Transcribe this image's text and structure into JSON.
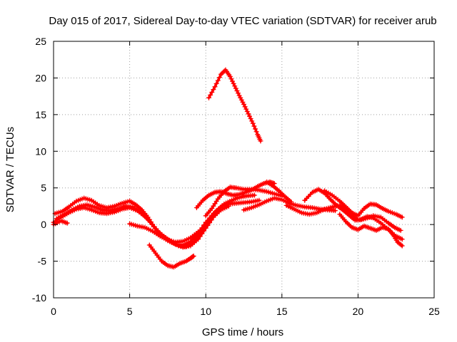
{
  "chart_data": {
    "type": "scatter",
    "title": "Day 015 of 2017, Sidereal Day-to-day VTEC variation (SDTVAR) for receiver arub",
    "xlabel": "GPS time / hours",
    "ylabel": "SDTVAR / TECUs",
    "xlim": [
      0,
      25
    ],
    "ylim": [
      -10,
      25
    ],
    "xticks": [
      "0",
      "5",
      "10",
      "15",
      "20",
      "25"
    ],
    "yticks": [
      "-10",
      "-5",
      "0",
      "5",
      "10",
      "15",
      "20",
      "25"
    ],
    "grid": true,
    "marker": "+",
    "color": "#ff0000",
    "series": [
      {
        "name": "track-1",
        "points": [
          [
            0.1,
            1.5
          ],
          [
            0.6,
            1.8
          ],
          [
            1.0,
            2.4
          ],
          [
            1.5,
            3.2
          ],
          [
            2.0,
            3.6
          ],
          [
            2.5,
            3.3
          ],
          [
            3.0,
            2.6
          ],
          [
            3.5,
            2.3
          ],
          [
            4.0,
            2.5
          ],
          [
            4.5,
            2.9
          ],
          [
            5.0,
            3.2
          ],
          [
            5.4,
            2.7
          ],
          [
            5.8,
            2.0
          ],
          [
            6.2,
            1.0
          ],
          [
            6.6,
            -0.3
          ],
          [
            7.0,
            -1.5
          ],
          [
            7.5,
            -2.2
          ],
          [
            8.0,
            -2.7
          ],
          [
            8.5,
            -2.8
          ],
          [
            9.0,
            -2.3
          ],
          [
            9.5,
            -1.2
          ],
          [
            10.0,
            0.3
          ],
          [
            10.5,
            1.5
          ],
          [
            11.0,
            2.4
          ],
          [
            11.5,
            2.8
          ],
          [
            12.0,
            2.9
          ],
          [
            12.5,
            3.0
          ],
          [
            13.0,
            3.1
          ],
          [
            13.5,
            3.3
          ]
        ]
      },
      {
        "name": "track-2",
        "points": [
          [
            0.2,
            0.8
          ],
          [
            0.7,
            1.4
          ],
          [
            1.2,
            2.0
          ],
          [
            1.7,
            2.5
          ],
          [
            2.2,
            2.7
          ],
          [
            2.7,
            2.4
          ],
          [
            3.2,
            2.0
          ],
          [
            3.7,
            1.9
          ],
          [
            4.2,
            2.1
          ],
          [
            4.7,
            2.5
          ],
          [
            5.2,
            2.4
          ],
          [
            5.7,
            1.7
          ],
          [
            6.2,
            0.7
          ],
          [
            6.7,
            -0.6
          ],
          [
            7.2,
            -1.6
          ],
          [
            7.7,
            -2.3
          ],
          [
            8.2,
            -2.9
          ],
          [
            8.7,
            -3.0
          ],
          [
            9.2,
            -2.4
          ],
          [
            9.7,
            -1.0
          ],
          [
            10.2,
            0.6
          ],
          [
            10.7,
            1.9
          ],
          [
            11.2,
            2.8
          ],
          [
            11.7,
            3.3
          ],
          [
            12.2,
            3.7
          ],
          [
            12.7,
            3.9
          ],
          [
            13.2,
            4.0
          ]
        ]
      },
      {
        "name": "track-3",
        "points": [
          [
            0.0,
            0.3
          ],
          [
            0.5,
            1.0
          ],
          [
            1.0,
            1.6
          ],
          [
            1.5,
            2.1
          ],
          [
            2.0,
            2.3
          ],
          [
            2.5,
            2.0
          ],
          [
            3.0,
            1.6
          ],
          [
            3.5,
            1.5
          ],
          [
            4.0,
            1.7
          ],
          [
            4.5,
            2.1
          ],
          [
            5.0,
            2.3
          ],
          [
            5.5,
            1.9
          ],
          [
            6.0,
            1.1
          ],
          [
            6.5,
            0.0
          ],
          [
            7.0,
            -1.2
          ],
          [
            7.5,
            -2.0
          ],
          [
            8.0,
            -2.6
          ],
          [
            8.5,
            -3.1
          ],
          [
            9.0,
            -2.9
          ],
          [
            9.5,
            -2.0
          ],
          [
            10.0,
            -0.5
          ],
          [
            10.5,
            1.0
          ],
          [
            11.0,
            2.0
          ],
          [
            11.5,
            2.5
          ]
        ]
      },
      {
        "name": "track-4",
        "points": [
          [
            0.0,
            0.0
          ],
          [
            0.5,
            0.5
          ],
          [
            0.9,
            0.2
          ]
        ]
      },
      {
        "name": "track-5",
        "points": [
          [
            5.0,
            0.1
          ],
          [
            5.5,
            -0.2
          ],
          [
            6.0,
            -0.4
          ],
          [
            6.5,
            -0.9
          ],
          [
            7.0,
            -1.6
          ],
          [
            7.5,
            -2.1
          ],
          [
            8.0,
            -2.4
          ],
          [
            8.5,
            -2.3
          ],
          [
            9.0,
            -1.8
          ],
          [
            9.5,
            -1.0
          ],
          [
            10.0,
            -0.1
          ]
        ]
      },
      {
        "name": "track-6",
        "points": [
          [
            6.3,
            -2.8
          ],
          [
            6.7,
            -3.9
          ],
          [
            7.1,
            -5.0
          ],
          [
            7.5,
            -5.6
          ],
          [
            7.9,
            -5.8
          ],
          [
            8.3,
            -5.3
          ],
          [
            8.7,
            -5.0
          ],
          [
            9.0,
            -4.6
          ],
          [
            9.2,
            -4.3
          ]
        ]
      },
      {
        "name": "track-7",
        "points": [
          [
            9.4,
            2.3
          ],
          [
            9.8,
            3.3
          ],
          [
            10.2,
            4.0
          ],
          [
            10.6,
            4.4
          ],
          [
            11.0,
            4.5
          ],
          [
            11.4,
            4.2
          ],
          [
            11.8,
            4.0
          ],
          [
            12.2,
            4.1
          ],
          [
            12.6,
            4.4
          ],
          [
            13.0,
            4.7
          ],
          [
            13.4,
            5.2
          ],
          [
            13.8,
            5.6
          ],
          [
            14.2,
            5.8
          ],
          [
            14.5,
            5.6
          ]
        ]
      },
      {
        "name": "track-8",
        "points": [
          [
            10.0,
            1.2
          ],
          [
            10.4,
            2.2
          ],
          [
            10.8,
            3.5
          ],
          [
            11.2,
            4.5
          ],
          [
            11.6,
            5.1
          ],
          [
            12.0,
            5.0
          ],
          [
            12.5,
            4.8
          ],
          [
            13.0,
            4.8
          ],
          [
            13.5,
            4.7
          ],
          [
            14.0,
            4.5
          ],
          [
            14.5,
            4.2
          ],
          [
            15.0,
            3.9
          ]
        ]
      },
      {
        "name": "track-9",
        "points": [
          [
            12.5,
            2.0
          ],
          [
            13.0,
            2.3
          ],
          [
            13.5,
            2.7
          ],
          [
            14.0,
            3.2
          ],
          [
            14.5,
            3.6
          ],
          [
            15.0,
            3.4
          ],
          [
            15.5,
            2.9
          ],
          [
            16.0,
            2.6
          ],
          [
            16.5,
            2.4
          ],
          [
            17.0,
            2.3
          ],
          [
            17.5,
            2.1
          ],
          [
            18.0,
            2.0
          ],
          [
            18.5,
            1.9
          ]
        ]
      },
      {
        "name": "track-10",
        "points": [
          [
            14.0,
            5.8
          ],
          [
            14.4,
            5.3
          ],
          [
            14.8,
            4.6
          ],
          [
            15.2,
            3.8
          ],
          [
            15.6,
            3.1
          ]
        ]
      },
      {
        "name": "track-11",
        "points": [
          [
            15.3,
            2.6
          ],
          [
            15.8,
            2.1
          ],
          [
            16.3,
            1.6
          ],
          [
            16.8,
            1.4
          ],
          [
            17.3,
            1.6
          ],
          [
            17.8,
            2.1
          ],
          [
            18.3,
            2.4
          ],
          [
            18.8,
            2.6
          ],
          [
            19.2,
            2.2
          ],
          [
            19.6,
            1.3
          ],
          [
            20.0,
            0.6
          ],
          [
            20.5,
            0.8
          ],
          [
            21.0,
            1.2
          ],
          [
            21.5,
            1.0
          ],
          [
            22.0,
            0.2
          ],
          [
            22.4,
            -0.4
          ],
          [
            22.8,
            -0.8
          ]
        ]
      },
      {
        "name": "track-12",
        "points": [
          [
            16.5,
            3.3
          ],
          [
            17.0,
            4.4
          ],
          [
            17.4,
            4.8
          ],
          [
            17.8,
            4.3
          ],
          [
            18.2,
            3.4
          ],
          [
            18.6,
            2.6
          ],
          [
            19.0,
            2.0
          ],
          [
            19.4,
            1.3
          ],
          [
            19.8,
            0.6
          ],
          [
            20.2,
            0.7
          ],
          [
            20.6,
            1.1
          ],
          [
            21.0,
            0.9
          ],
          [
            21.5,
            0.2
          ],
          [
            22.0,
            -0.7
          ],
          [
            22.5,
            -1.6
          ],
          [
            22.9,
            -2.0
          ]
        ]
      },
      {
        "name": "track-13",
        "points": [
          [
            17.8,
            4.6
          ],
          [
            18.3,
            4.0
          ],
          [
            18.8,
            3.2
          ],
          [
            19.2,
            2.4
          ],
          [
            19.6,
            1.6
          ],
          [
            20.0,
            1.2
          ],
          [
            20.4,
            2.2
          ],
          [
            20.8,
            2.8
          ],
          [
            21.2,
            2.7
          ],
          [
            21.6,
            2.2
          ],
          [
            22.0,
            1.8
          ],
          [
            22.5,
            1.4
          ],
          [
            22.9,
            1.0
          ]
        ]
      },
      {
        "name": "track-14",
        "points": [
          [
            18.8,
            1.4
          ],
          [
            19.2,
            0.4
          ],
          [
            19.6,
            -0.4
          ],
          [
            20.0,
            -0.7
          ],
          [
            20.4,
            -0.2
          ],
          [
            20.8,
            -0.5
          ],
          [
            21.2,
            -0.8
          ],
          [
            21.6,
            -0.4
          ],
          [
            22.0,
            -0.6
          ],
          [
            22.3,
            -1.4
          ],
          [
            22.6,
            -2.4
          ],
          [
            22.9,
            -2.9
          ]
        ]
      },
      {
        "name": "track-15",
        "points": [
          [
            10.2,
            17.3
          ],
          [
            10.6,
            18.8
          ],
          [
            11.0,
            20.5
          ],
          [
            11.3,
            21.1
          ],
          [
            11.6,
            20.2
          ],
          [
            11.9,
            18.9
          ],
          [
            12.2,
            17.6
          ],
          [
            12.5,
            16.4
          ],
          [
            12.8,
            15.1
          ],
          [
            13.1,
            13.8
          ],
          [
            13.4,
            12.3
          ],
          [
            13.6,
            11.4
          ]
        ]
      }
    ]
  }
}
